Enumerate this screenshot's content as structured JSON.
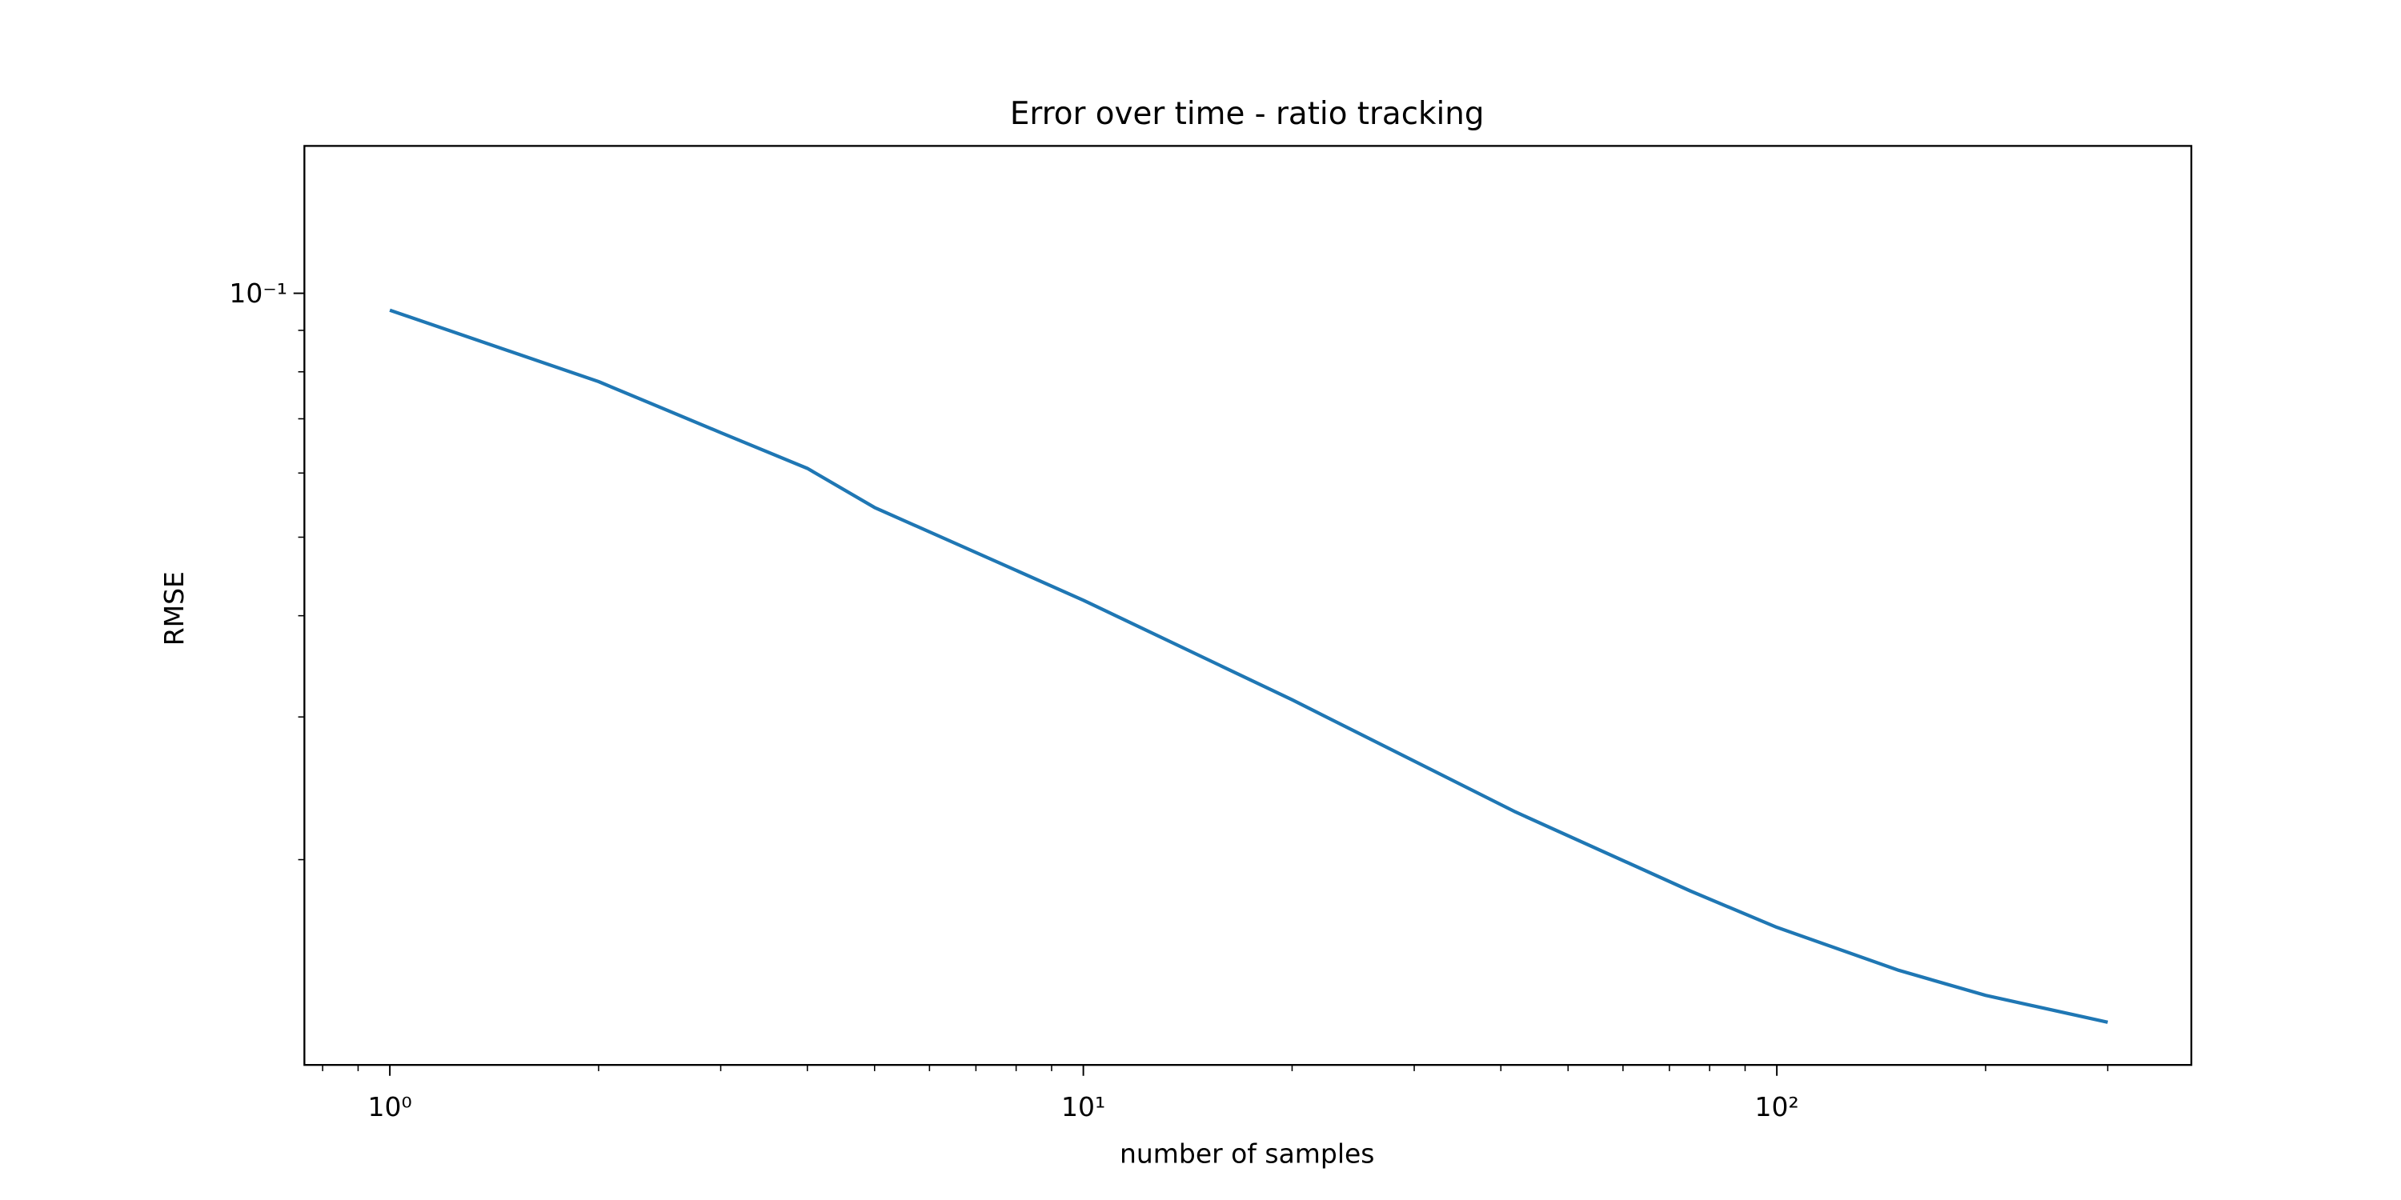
{
  "chart_data": {
    "type": "line",
    "title": "Error over time - ratio tracking",
    "x_label": "number of samples",
    "y_label": "RMSE",
    "x_scale": "log",
    "y_scale": "log",
    "xlim": [
      0.753,
      396
    ],
    "ylim": [
      0.01116,
      0.152
    ],
    "xticks": [
      {
        "value": 1,
        "label": "10⁰"
      },
      {
        "value": 10,
        "label": "10¹"
      },
      {
        "value": 100,
        "label": "10²"
      }
    ],
    "xminorticks": [
      0.8,
      0.9,
      2,
      3,
      4,
      5,
      6,
      7,
      8,
      9,
      20,
      30,
      40,
      50,
      60,
      70,
      80,
      90,
      200,
      300
    ],
    "yticks": [
      {
        "value": 0.1,
        "label": "10⁻¹"
      }
    ],
    "yminorticks": [
      0.02,
      0.03,
      0.04,
      0.05,
      0.06,
      0.07,
      0.08,
      0.09
    ],
    "series": [
      {
        "color": "#1f77b4",
        "x": [
          1,
          2,
          3,
          4,
          5,
          10,
          20,
          42,
          75,
          100,
          150,
          200,
          300
        ],
        "values": [
          0.0953,
          0.0778,
          0.0673,
          0.0608,
          0.0544,
          0.0418,
          0.0315,
          0.0229,
          0.0183,
          0.0165,
          0.0146,
          0.0136,
          0.0126
        ]
      }
    ]
  }
}
